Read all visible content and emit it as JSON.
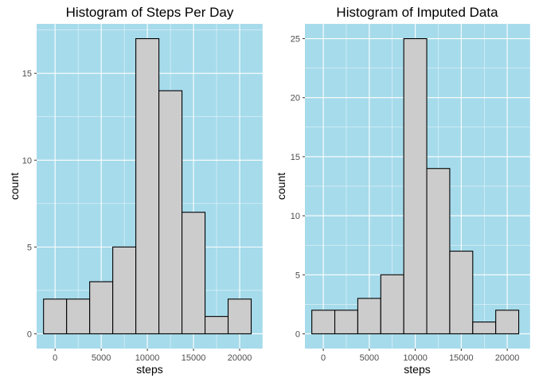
{
  "chart_data": [
    {
      "type": "bar",
      "title": "Histogram of Steps Per Day",
      "xlabel": "steps",
      "ylabel": "count",
      "panel_bg": "#a6dbeb",
      "bar_fill": "#cccccc",
      "bar_stroke": "#000000",
      "xlim": [
        -2000,
        22500
      ],
      "ylim": [
        -0.85,
        17.85
      ],
      "x_ticks": [
        0,
        5000,
        10000,
        15000,
        20000
      ],
      "x_tick_labels": [
        "0",
        "5000",
        "10000",
        "15000",
        "20000"
      ],
      "y_ticks": [
        0,
        5,
        10,
        15
      ],
      "y_tick_labels": [
        "0",
        "5",
        "10",
        "15"
      ],
      "bins": [
        {
          "x0": -1250,
          "x1": 1250,
          "count": 2
        },
        {
          "x0": 1250,
          "x1": 3750,
          "count": 2
        },
        {
          "x0": 3750,
          "x1": 6250,
          "count": 3
        },
        {
          "x0": 6250,
          "x1": 8750,
          "count": 5
        },
        {
          "x0": 8750,
          "x1": 11250,
          "count": 17
        },
        {
          "x0": 11250,
          "x1": 13750,
          "count": 14
        },
        {
          "x0": 13750,
          "x1": 16250,
          "count": 7
        },
        {
          "x0": 16250,
          "x1": 18750,
          "count": 1
        },
        {
          "x0": 18750,
          "x1": 21250,
          "count": 2
        }
      ]
    },
    {
      "type": "bar",
      "title": "Histogram of Imputed Data",
      "xlabel": "steps",
      "ylabel": "count",
      "panel_bg": "#a6dbeb",
      "bar_fill": "#cccccc",
      "bar_stroke": "#000000",
      "xlim": [
        -2000,
        22500
      ],
      "ylim": [
        -1.25,
        26.25
      ],
      "x_ticks": [
        0,
        5000,
        10000,
        15000,
        20000
      ],
      "x_tick_labels": [
        "0",
        "5000",
        "10000",
        "15000",
        "20000"
      ],
      "y_ticks": [
        0,
        5,
        10,
        15,
        20,
        25
      ],
      "y_tick_labels": [
        "0",
        "5",
        "10",
        "15",
        "20",
        "25"
      ],
      "bins": [
        {
          "x0": -1250,
          "x1": 1250,
          "count": 2
        },
        {
          "x0": 1250,
          "x1": 3750,
          "count": 2
        },
        {
          "x0": 3750,
          "x1": 6250,
          "count": 3
        },
        {
          "x0": 6250,
          "x1": 8750,
          "count": 5
        },
        {
          "x0": 8750,
          "x1": 11250,
          "count": 25
        },
        {
          "x0": 11250,
          "x1": 13750,
          "count": 14
        },
        {
          "x0": 13750,
          "x1": 16250,
          "count": 7
        },
        {
          "x0": 16250,
          "x1": 18750,
          "count": 1
        },
        {
          "x0": 18750,
          "x1": 21250,
          "count": 2
        }
      ]
    }
  ]
}
